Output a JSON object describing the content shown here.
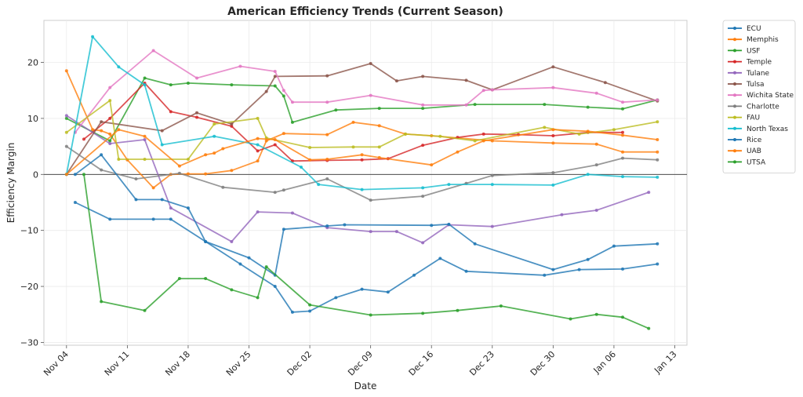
{
  "chart_data": {
    "type": "line",
    "title": "American Efficiency Trends (Current Season)",
    "xlabel": "Date",
    "ylabel": "Efficiency Margin",
    "grid": true,
    "legend_position": "outside-top-right",
    "zero_line": true,
    "x_ticks": [
      "Nov 04",
      "Nov 11",
      "Nov 18",
      "Nov 25",
      "Dec 02",
      "Dec 09",
      "Dec 16",
      "Dec 23",
      "Dec 30",
      "Jan 06",
      "Jan 13"
    ],
    "x_tick_days": [
      0,
      7,
      14,
      21,
      28,
      35,
      42,
      49,
      56,
      63,
      70
    ],
    "x_range_days": [
      -2.6,
      71.4
    ],
    "y_ticks": [
      -30,
      -20,
      -10,
      0,
      10,
      20
    ],
    "ylim": [
      -30.5,
      27.5
    ],
    "x_unit": "days since Nov 04",
    "series": [
      {
        "name": "ECU",
        "color": "#1f77b4",
        "points": [
          [
            1,
            -5
          ],
          [
            5,
            -8
          ],
          [
            10,
            -8
          ],
          [
            12,
            -8
          ],
          [
            16,
            -12
          ],
          [
            20,
            -16
          ],
          [
            24,
            -20
          ],
          [
            26,
            -24.6
          ],
          [
            28,
            -24.4
          ],
          [
            31,
            -22
          ],
          [
            34,
            -20.5
          ],
          [
            37,
            -21
          ],
          [
            40,
            -18
          ],
          [
            43,
            -15
          ],
          [
            46,
            -17.3
          ],
          [
            55,
            -18
          ],
          [
            59,
            -17
          ],
          [
            64,
            -16.9
          ],
          [
            68,
            -16
          ]
        ]
      },
      {
        "name": "Memphis",
        "color": "#ff7f0e",
        "points": [
          [
            0,
            18.5
          ],
          [
            3,
            8
          ],
          [
            4,
            7.8
          ],
          [
            5,
            7.2
          ],
          [
            7,
            2.6
          ],
          [
            10,
            -2.4
          ],
          [
            12,
            0
          ],
          [
            14,
            0.1
          ],
          [
            16,
            0.1
          ],
          [
            19,
            0.7
          ],
          [
            22,
            2.4
          ],
          [
            23,
            6
          ],
          [
            25,
            7.3
          ],
          [
            30,
            7.1
          ],
          [
            33,
            9.3
          ],
          [
            36,
            8.7
          ],
          [
            39,
            7.2
          ],
          [
            42,
            6.9
          ],
          [
            49,
            6
          ],
          [
            56,
            5.6
          ],
          [
            61,
            5.4
          ],
          [
            64,
            4
          ],
          [
            68,
            4
          ]
        ]
      },
      {
        "name": "USF",
        "color": "#2ca02c",
        "points": [
          [
            0,
            10
          ],
          [
            5,
            6
          ],
          [
            9,
            17.2
          ],
          [
            12,
            16
          ],
          [
            14,
            16.3
          ],
          [
            19,
            16
          ],
          [
            24,
            15.8
          ],
          [
            25,
            14
          ],
          [
            26,
            9.3
          ],
          [
            31,
            11.5
          ],
          [
            36,
            11.8
          ],
          [
            41,
            11.8
          ],
          [
            47,
            12.5
          ],
          [
            55,
            12.5
          ],
          [
            60,
            12
          ],
          [
            64,
            11.7
          ],
          [
            68,
            13.3
          ]
        ]
      },
      {
        "name": "Temple",
        "color": "#d62728",
        "points": [
          [
            2,
            6.3
          ],
          [
            5,
            10
          ],
          [
            9,
            16.3
          ],
          [
            12,
            11.2
          ],
          [
            15,
            10.2
          ],
          [
            19,
            8.6
          ],
          [
            22,
            4.2
          ],
          [
            24,
            5.3
          ],
          [
            26,
            2.4
          ],
          [
            30,
            2.5
          ],
          [
            34,
            2.6
          ],
          [
            37,
            2.8
          ],
          [
            41,
            5.2
          ],
          [
            45,
            6.6
          ],
          [
            48,
            7.2
          ],
          [
            52,
            7.1
          ],
          [
            56,
            6.9
          ],
          [
            60,
            7.5
          ],
          [
            64,
            7.5
          ]
        ]
      },
      {
        "name": "Tulane",
        "color": "#9467bd",
        "points": [
          [
            0,
            10.5
          ],
          [
            5,
            5.5
          ],
          [
            9,
            6.2
          ],
          [
            12,
            -6
          ],
          [
            19,
            -12
          ],
          [
            22,
            -6.7
          ],
          [
            26,
            -6.9
          ],
          [
            30,
            -9.5
          ],
          [
            35,
            -10.2
          ],
          [
            38,
            -10.2
          ],
          [
            41,
            -12.2
          ],
          [
            44,
            -9
          ],
          [
            49,
            -9.3
          ],
          [
            57,
            -7.2
          ],
          [
            61,
            -6.4
          ],
          [
            67,
            -3.2
          ]
        ]
      },
      {
        "name": "Tulsa",
        "color": "#8c564b",
        "points": [
          [
            0,
            0
          ],
          [
            4,
            9.4
          ],
          [
            11,
            7.8
          ],
          [
            15,
            11
          ],
          [
            19,
            9
          ],
          [
            23,
            14.8
          ],
          [
            24,
            17.5
          ],
          [
            30,
            17.6
          ],
          [
            35,
            19.8
          ],
          [
            38,
            16.7
          ],
          [
            41,
            17.5
          ],
          [
            46,
            16.8
          ],
          [
            49,
            15.1
          ],
          [
            56,
            19.2
          ],
          [
            62,
            16.4
          ],
          [
            68,
            13.1
          ]
        ]
      },
      {
        "name": "Wichita State",
        "color": "#e377c2",
        "points": [
          [
            1,
            7.5
          ],
          [
            5,
            15.5
          ],
          [
            10,
            22.1
          ],
          [
            15,
            17.2
          ],
          [
            20,
            19.3
          ],
          [
            24,
            18.4
          ],
          [
            25,
            15
          ],
          [
            26,
            12.9
          ],
          [
            30,
            12.9
          ],
          [
            35,
            14.1
          ],
          [
            41,
            12.4
          ],
          [
            46,
            12.4
          ],
          [
            48,
            15
          ],
          [
            49,
            15.1
          ],
          [
            56,
            15.5
          ],
          [
            61,
            14.5
          ],
          [
            64,
            12.9
          ],
          [
            68,
            13.3
          ]
        ]
      },
      {
        "name": "Charlotte",
        "color": "#7f7f7f",
        "points": [
          [
            0,
            5
          ],
          [
            4,
            0.8
          ],
          [
            8,
            -0.8
          ],
          [
            13,
            0.2
          ],
          [
            18,
            -2.3
          ],
          [
            24,
            -3.2
          ],
          [
            25,
            -2.8
          ],
          [
            30,
            -0.8
          ],
          [
            35,
            -4.6
          ],
          [
            41,
            -3.9
          ],
          [
            46,
            -1.6
          ],
          [
            49,
            -0.2
          ],
          [
            56,
            0.3
          ],
          [
            61,
            1.7
          ],
          [
            64,
            2.9
          ],
          [
            68,
            2.6
          ]
        ]
      },
      {
        "name": "FAU",
        "color": "#bcbd22",
        "points": [
          [
            0,
            7.5
          ],
          [
            5,
            13.2
          ],
          [
            6,
            2.7
          ],
          [
            9,
            2.7
          ],
          [
            14,
            2.7
          ],
          [
            17,
            9
          ],
          [
            22,
            10
          ],
          [
            23,
            6.5
          ],
          [
            28,
            4.8
          ],
          [
            33,
            4.9
          ],
          [
            36,
            4.9
          ],
          [
            39,
            7.2
          ],
          [
            43,
            6.8
          ],
          [
            47,
            6
          ],
          [
            55,
            8.4
          ],
          [
            59,
            7.2
          ],
          [
            63,
            8
          ],
          [
            68,
            9.4
          ]
        ]
      },
      {
        "name": "North Texas",
        "color": "#17becf",
        "points": [
          [
            0,
            0
          ],
          [
            3,
            24.6
          ],
          [
            6,
            19.2
          ],
          [
            9,
            16
          ],
          [
            11,
            5.3
          ],
          [
            17,
            6.8
          ],
          [
            22,
            5.3
          ],
          [
            27,
            1.3
          ],
          [
            29,
            -1.8
          ],
          [
            34,
            -2.7
          ],
          [
            41,
            -2.4
          ],
          [
            44,
            -1.8
          ],
          [
            49,
            -1.8
          ],
          [
            56,
            -1.9
          ],
          [
            60,
            0
          ],
          [
            64,
            -0.4
          ],
          [
            68,
            -0.5
          ]
        ]
      },
      {
        "name": "Rice",
        "color": "#1f77b4",
        "points": [
          [
            1,
            0
          ],
          [
            4,
            3.5
          ],
          [
            8,
            -4.5
          ],
          [
            11,
            -4.5
          ],
          [
            14,
            -6
          ],
          [
            16,
            -12
          ],
          [
            21,
            -14.9
          ],
          [
            24,
            -18
          ],
          [
            25,
            -9.8
          ],
          [
            30,
            -9.2
          ],
          [
            32,
            -9
          ],
          [
            42,
            -9.1
          ],
          [
            44,
            -8.9
          ],
          [
            47,
            -12.4
          ],
          [
            56,
            -17
          ],
          [
            60,
            -15.2
          ],
          [
            63,
            -12.8
          ],
          [
            68,
            -12.4
          ]
        ]
      },
      {
        "name": "UAB",
        "color": "#ff7f0e",
        "points": [
          [
            0,
            0
          ],
          [
            6,
            8
          ],
          [
            9,
            6.8
          ],
          [
            13,
            1.5
          ],
          [
            16,
            3.5
          ],
          [
            17,
            3.8
          ],
          [
            18,
            4.6
          ],
          [
            22,
            6.4
          ],
          [
            24,
            6.2
          ],
          [
            28,
            2.6
          ],
          [
            30,
            2.7
          ],
          [
            34,
            3.5
          ],
          [
            36,
            3
          ],
          [
            42,
            1.7
          ],
          [
            45,
            4
          ],
          [
            48,
            6
          ],
          [
            56,
            8
          ],
          [
            60,
            7.7
          ],
          [
            64,
            7
          ],
          [
            68,
            6.2
          ]
        ]
      },
      {
        "name": "UTSA",
        "color": "#2ca02c",
        "points": [
          [
            2,
            0
          ],
          [
            4,
            -22.7
          ],
          [
            9,
            -24.3
          ],
          [
            13,
            -18.6
          ],
          [
            16,
            -18.6
          ],
          [
            19,
            -20.6
          ],
          [
            22,
            -22
          ],
          [
            23,
            -16.5
          ],
          [
            28,
            -23.3
          ],
          [
            35,
            -25.1
          ],
          [
            41,
            -24.8
          ],
          [
            45,
            -24.3
          ],
          [
            50,
            -23.5
          ],
          [
            58,
            -25.8
          ],
          [
            61,
            -25
          ],
          [
            64,
            -25.5
          ],
          [
            67,
            -27.5
          ]
        ]
      }
    ]
  }
}
